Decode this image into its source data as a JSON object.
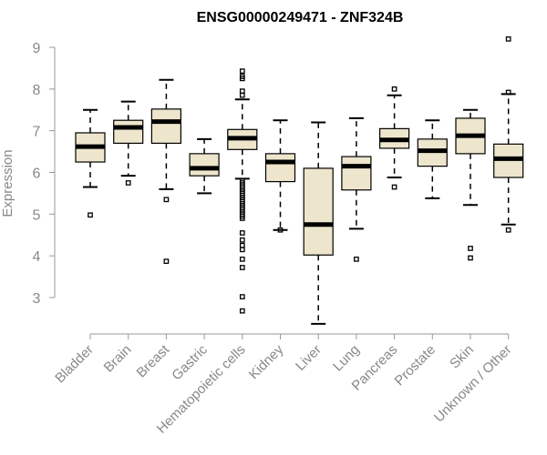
{
  "chart_data": {
    "type": "boxplot",
    "title": "ENSG00000249471 - ZNF324B",
    "xlabel": "",
    "ylabel": "Expression",
    "ylim": [
      2.3,
      9.4
    ],
    "yticks": [
      3,
      4,
      5,
      6,
      7,
      8,
      9
    ],
    "grid": false,
    "colors": {
      "box_fill": "#ede6cc",
      "line": "#000000",
      "axis": "#999999",
      "label": "#888888"
    },
    "categories": [
      "Bladder",
      "Brain",
      "Breast",
      "Gastric",
      "Hematopoietic cells",
      "Kidney",
      "Liver",
      "Lung",
      "Pancreas",
      "Prostate",
      "Skin",
      "Unknown / Other"
    ],
    "boxes": [
      {
        "name": "Bladder",
        "min": 5.65,
        "q1": 6.25,
        "median": 6.62,
        "q3": 6.95,
        "max": 7.5,
        "outliers": [
          4.98
        ]
      },
      {
        "name": "Brain",
        "min": 5.92,
        "q1": 6.7,
        "median": 7.08,
        "q3": 7.25,
        "max": 7.7,
        "outliers": [
          5.75
        ]
      },
      {
        "name": "Breast",
        "min": 5.6,
        "q1": 6.7,
        "median": 7.22,
        "q3": 7.52,
        "max": 8.22,
        "outliers": [
          5.35,
          3.87
        ]
      },
      {
        "name": "Gastric",
        "min": 5.5,
        "q1": 5.92,
        "median": 6.1,
        "q3": 6.45,
        "max": 6.8,
        "outliers": []
      },
      {
        "name": "Hematopoietic cells",
        "min": 5.85,
        "q1": 6.55,
        "median": 6.82,
        "q3": 7.03,
        "max": 7.75,
        "outliers": [
          8.43,
          8.3,
          8.25,
          7.95,
          7.85,
          5.8,
          5.75,
          5.7,
          5.65,
          5.6,
          5.55,
          5.5,
          5.45,
          5.4,
          5.35,
          5.3,
          5.25,
          5.2,
          5.15,
          5.1,
          5.05,
          5.0,
          4.95,
          4.9,
          4.55,
          4.38,
          4.25,
          4.15,
          3.92,
          3.72,
          3.02,
          2.68
        ]
      },
      {
        "name": "Kidney",
        "min": 4.62,
        "q1": 5.78,
        "median": 6.25,
        "q3": 6.45,
        "max": 7.25,
        "outliers": [
          4.62
        ]
      },
      {
        "name": "Liver",
        "min": 2.37,
        "q1": 4.02,
        "median": 4.75,
        "q3": 6.1,
        "max": 7.2,
        "outliers": []
      },
      {
        "name": "Lung",
        "min": 4.65,
        "q1": 5.58,
        "median": 6.15,
        "q3": 6.38,
        "max": 7.3,
        "outliers": [
          3.92
        ]
      },
      {
        "name": "Pancreas",
        "min": 5.88,
        "q1": 6.58,
        "median": 6.78,
        "q3": 7.05,
        "max": 7.85,
        "outliers": [
          8.0,
          5.65
        ]
      },
      {
        "name": "Prostate",
        "min": 5.38,
        "q1": 6.15,
        "median": 6.52,
        "q3": 6.8,
        "max": 7.25,
        "outliers": []
      },
      {
        "name": "Skin",
        "min": 5.22,
        "q1": 6.45,
        "median": 6.88,
        "q3": 7.3,
        "max": 7.5,
        "outliers": [
          4.18,
          3.95
        ]
      },
      {
        "name": "Unknown / Other",
        "min": 4.75,
        "q1": 5.88,
        "median": 6.33,
        "q3": 6.68,
        "max": 7.88,
        "outliers": [
          9.2,
          7.92,
          4.62
        ]
      }
    ]
  }
}
